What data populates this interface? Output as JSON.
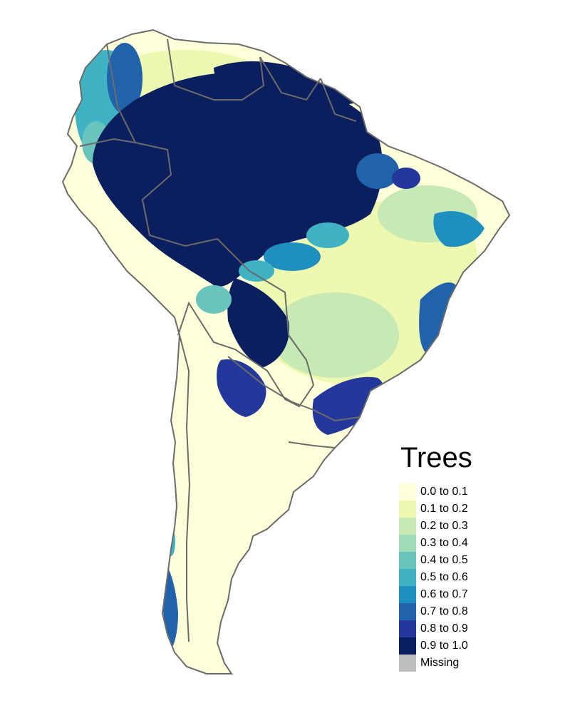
{
  "legend": {
    "title": "Trees",
    "classes": [
      {
        "label": "0.0 to 0.1",
        "color": "#ffffd9"
      },
      {
        "label": "0.1 to 0.2",
        "color": "#edf8b1"
      },
      {
        "label": "0.2 to 0.3",
        "color": "#c7e9b4"
      },
      {
        "label": "0.3 to 0.4",
        "color": "#a0dcb9"
      },
      {
        "label": "0.4 to 0.5",
        "color": "#6ac4be"
      },
      {
        "label": "0.5 to 0.6",
        "color": "#3fb2c4"
      },
      {
        "label": "0.6 to 0.7",
        "color": "#1f8fbf"
      },
      {
        "label": "0.7 to 0.8",
        "color": "#2163aa"
      },
      {
        "label": "0.8 to 0.9",
        "color": "#23389a"
      },
      {
        "label": "0.9 to 1.0",
        "color": "#0b1f5e"
      }
    ],
    "missing": {
      "label": "Missing",
      "color": "#bebebe"
    }
  },
  "map": {
    "region": "South America",
    "variable": "Trees",
    "border_color": "#6b6b6b",
    "patterns": [
      {
        "area": "Amazon basin",
        "class": "0.9 to 1.0"
      },
      {
        "area": "Guiana Shield",
        "class": "0.9 to 1.0"
      },
      {
        "area": "Andes (northwest)",
        "class": "0.3 to 0.9"
      },
      {
        "area": "Brazilian cerrado / plateau",
        "class": "0.1 to 0.3"
      },
      {
        "area": "Atlantic forest (southeast Brazil)",
        "class": "0.7 to 1.0"
      },
      {
        "area": "Paraguay / Chaco",
        "class": "0.7 to 1.0"
      },
      {
        "area": "Southern cone / Patagonia",
        "class": "0.0 to 0.1"
      },
      {
        "area": "Southern Chile coast",
        "class": "0.5 to 0.9"
      },
      {
        "area": "Peru / Chile coastal desert",
        "class": "0.0 to 0.1"
      }
    ]
  }
}
